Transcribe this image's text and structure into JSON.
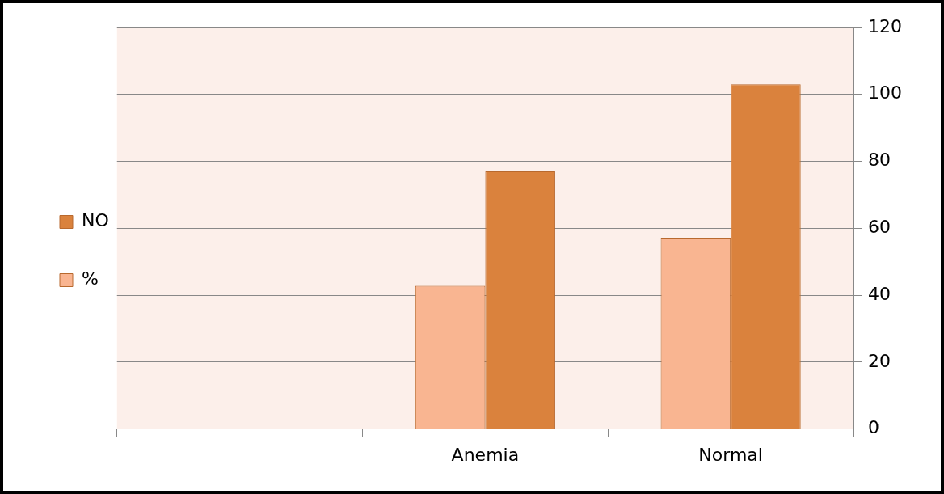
{
  "chart_data": {
    "type": "bar",
    "categories": [
      null,
      "Anemia",
      "Normal"
    ],
    "series": [
      {
        "name": "%",
        "color": "#f9b591",
        "values": [
          null,
          42.8,
          57.2
        ]
      },
      {
        "name": "NO",
        "color": "#da823d",
        "values": [
          null,
          77,
          103
        ]
      }
    ],
    "ylim": [
      0,
      120
    ],
    "yticks": [
      0,
      20,
      40,
      60,
      80,
      100,
      120
    ],
    "grid": "y",
    "legend": "left"
  }
}
